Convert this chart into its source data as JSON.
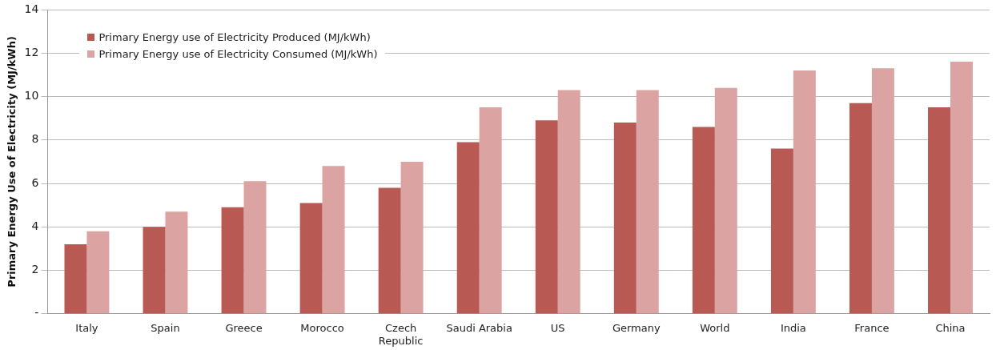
{
  "chart_data": {
    "type": "bar",
    "ylabel": "Primary Energy Use of Electricity (MJ/kWh)",
    "categories": [
      "Italy",
      "Spain",
      "Greece",
      "Morocco",
      "Czech Republic",
      "Saudi Arabia",
      "US",
      "Germany",
      "World",
      "India",
      "France",
      "China"
    ],
    "series": [
      {
        "name": "Primary Energy use of Electricity Produced (MJ/kWh)",
        "color": "#b85a53",
        "values": [
          3.2,
          4.0,
          4.9,
          5.1,
          5.8,
          7.9,
          8.9,
          8.8,
          8.6,
          7.6,
          9.7,
          9.5
        ]
      },
      {
        "name": "Primary Energy use of Electricity Consumed (MJ/kWh)",
        "color": "#dba3a1",
        "values": [
          3.8,
          4.7,
          6.1,
          6.8,
          7.0,
          9.5,
          10.3,
          10.3,
          10.4,
          11.2,
          11.3,
          11.6
        ]
      }
    ],
    "ylim": [
      0,
      14
    ],
    "yticks": [
      {
        "value": 0,
        "label": "-"
      },
      2,
      4,
      6,
      8,
      10,
      12,
      14
    ],
    "grid": "y",
    "legend": "top left"
  }
}
